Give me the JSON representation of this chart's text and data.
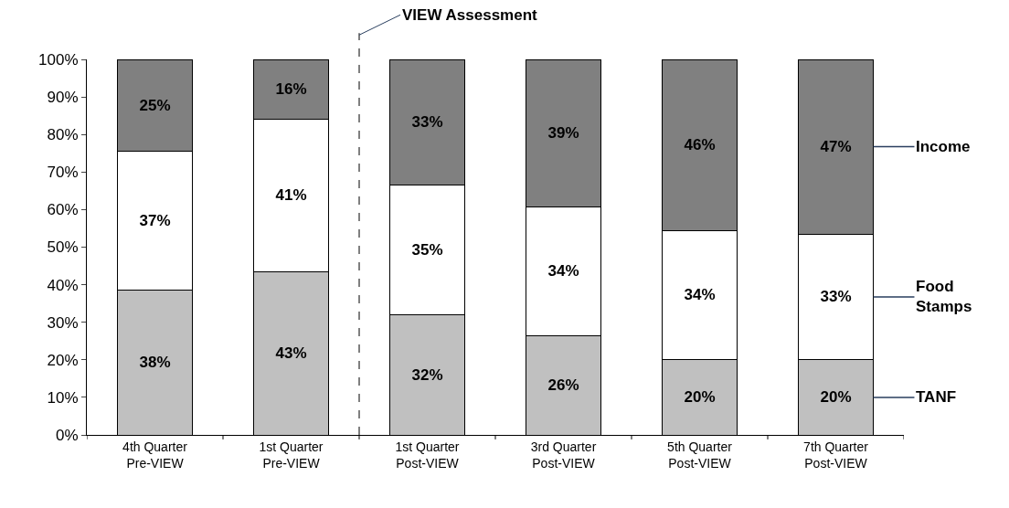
{
  "chart_data": {
    "type": "bar",
    "stacked": true,
    "categories": [
      "4th Quarter\nPre-VIEW",
      "1st Quarter\nPre-VIEW",
      "1st Quarter\nPost-VIEW",
      "3rd Quarter\nPost-VIEW",
      "5th Quarter\nPost-VIEW",
      "7th Quarter\nPost-VIEW"
    ],
    "series": [
      {
        "name": "TANF",
        "color": "#c0c0c0",
        "values": [
          38.5,
          43.5,
          32,
          26.4,
          20,
          20
        ],
        "value_labels": [
          "38%",
          "43%",
          "32%",
          "26%",
          "20%",
          "20%"
        ]
      },
      {
        "name": "Food Stamps",
        "color": "#ffffff",
        "values": [
          37,
          40.5,
          34.5,
          34.4,
          34.5,
          33.5
        ],
        "value_labels": [
          "37%",
          "41%",
          "35%",
          "34%",
          "34%",
          "33%"
        ]
      },
      {
        "name": "Income",
        "color": "#808080",
        "values": [
          24.5,
          16,
          33.5,
          39.2,
          45.5,
          46.5
        ],
        "value_labels": [
          "25%",
          "16%",
          "33%",
          "39%",
          "46%",
          "47%"
        ]
      }
    ],
    "ylim": [
      0,
      100
    ],
    "yticks": [
      {
        "value": 0,
        "label": "0%"
      },
      {
        "value": 10,
        "label": "10%"
      },
      {
        "value": 20,
        "label": "20%"
      },
      {
        "value": 30,
        "label": "30%"
      },
      {
        "value": 40,
        "label": "40%"
      },
      {
        "value": 50,
        "label": "50%"
      },
      {
        "value": 60,
        "label": "60%"
      },
      {
        "value": 70,
        "label": "70%"
      },
      {
        "value": 80,
        "label": "80%"
      },
      {
        "value": 90,
        "label": "90%"
      },
      {
        "value": 100,
        "label": "100%"
      }
    ],
    "annotations": [
      "VIEW Assessment"
    ],
    "legend": false
  }
}
